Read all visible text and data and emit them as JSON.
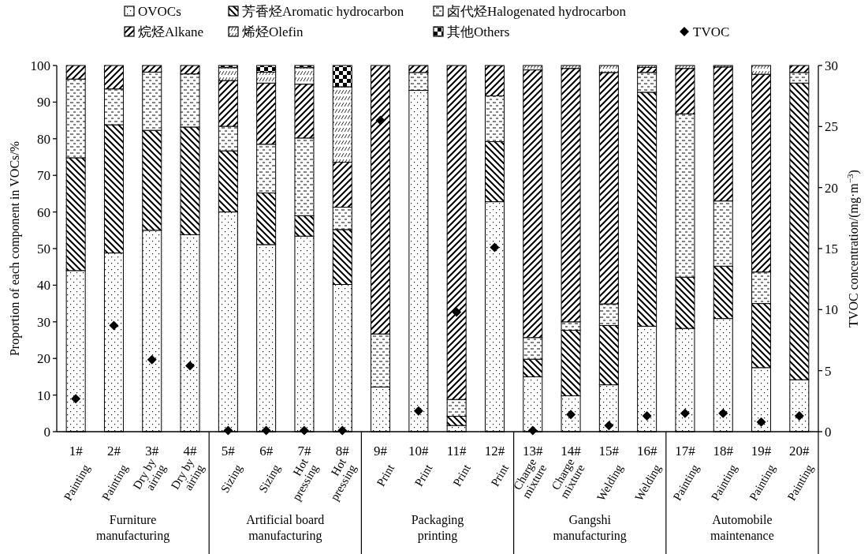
{
  "chart_data": {
    "type": "bar",
    "stacked": true,
    "legend": "top",
    "grid": false,
    "ylabel": "Proportion of each component in VOCs/%",
    "y2label": "TVOC concentration/(mg·m$^{−3}$)",
    "ylim": [
      0,
      100
    ],
    "yticks": [
      0,
      10,
      20,
      30,
      40,
      50,
      60,
      70,
      80,
      90,
      100
    ],
    "y2lim": [
      0,
      30
    ],
    "y2ticks": [
      0,
      5,
      10,
      15,
      20,
      25,
      30
    ],
    "categories": [
      "1#\nPainting",
      "2#\nPainting",
      "3#\nDry by\nairing",
      "4#\nDry by\nairing",
      "5#\nSizing",
      "6#\nSizing",
      "7#\nHot\npressing",
      "8#\nHot\npressing",
      "9#\nPrint",
      "10#\nPrint",
      "11#\nPrint",
      "12#\nPrint",
      "13#\nCharge\nmixture",
      "14#\nCharge\nmixture",
      "15#\nWelding",
      "16#\nWelding",
      "17#\nPainting",
      "18#\nPainting",
      "19#\nPainting",
      "20#\nPainting"
    ],
    "annotations": [
      "Furniture\nmanufacturing",
      "Artificial board\nmanufacturing",
      "Packaging\nprinting",
      "Gangshi\nmanufacturing",
      "Automobile\nmaintenance"
    ],
    "series": [
      {
        "name": "OVOCs",
        "color": "#000000",
        "values": [
          44.0,
          48.8,
          55.0,
          53.8,
          60.0,
          51.1,
          53.4,
          40.2,
          12.2,
          93.2,
          1.7,
          62.8,
          15.0,
          9.8,
          12.8,
          28.8,
          28.2,
          30.9,
          17.5,
          14.2
        ]
      },
      {
        "name": "芳香烃Aromatic hydrocarbon",
        "color": "#000000",
        "values": [
          30.8,
          35.0,
          27.3,
          29.4,
          16.7,
          14.1,
          5.6,
          15.0,
          0,
          0,
          2.5,
          16.4,
          4.8,
          17.9,
          16.2,
          63.9,
          14.0,
          14.3,
          17.5,
          81.0
        ]
      },
      {
        "name": "卤代烃Halogenated hydrocarbon",
        "color": "#000000",
        "values": [
          21.5,
          9.8,
          15.9,
          14.5,
          6.7,
          13.3,
          21.2,
          6.1,
          14.5,
          4.9,
          4.6,
          12.5,
          5.9,
          2.3,
          5.9,
          5.4,
          44.6,
          17.8,
          8.6,
          2.9
        ]
      },
      {
        "name": "烷烃Alkane",
        "color": "#000000",
        "values": [
          3.7,
          6.4,
          1.8,
          2.3,
          12.5,
          16.7,
          14.7,
          12.3,
          73.3,
          1.9,
          91.2,
          8.3,
          73.1,
          69.2,
          63.2,
          1.4,
          12.4,
          36.6,
          54.0,
          1.9
        ]
      },
      {
        "name": "烯烃Olefin",
        "color": "#000000",
        "values": [
          0,
          0,
          0,
          0,
          3.5,
          3.0,
          4.5,
          20.6,
          0,
          0,
          0,
          0,
          1.2,
          0.8,
          1.9,
          0.5,
          0.8,
          0.4,
          2.4,
          0
        ]
      },
      {
        "name": "其他Others",
        "color": "#000000",
        "values": [
          0,
          0,
          0,
          0,
          0.6,
          1.8,
          0.6,
          5.8,
          0,
          0,
          0,
          0,
          0,
          0,
          0,
          0,
          0,
          0,
          0,
          0
        ]
      },
      {
        "name": "TVOC",
        "type": "scatter",
        "axis": "y2",
        "marker": "diamond",
        "color": "#000000",
        "values": [
          2.7,
          8.7,
          5.9,
          5.4,
          0.1,
          0.1,
          0.1,
          0.1,
          25.5,
          1.7,
          9.8,
          15.1,
          0.1,
          1.4,
          0.5,
          1.3,
          1.5,
          1.5,
          0.8,
          1.3
        ]
      }
    ]
  }
}
